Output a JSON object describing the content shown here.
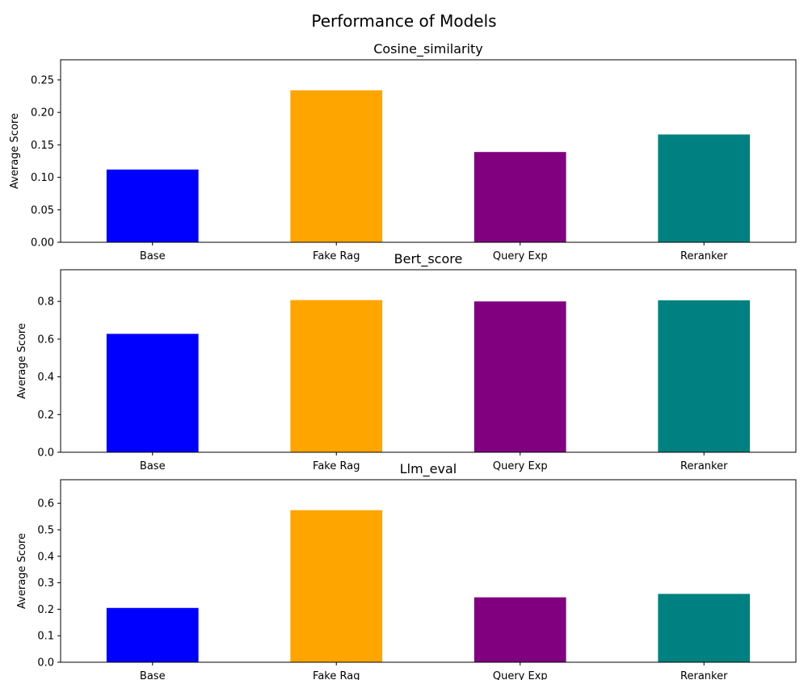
{
  "figure_title": "Performance of Models",
  "chart_data": [
    {
      "type": "bar",
      "title": "Cosine_similarity",
      "categories": [
        "Base",
        "Fake Rag",
        "Query Exp",
        "Reranker"
      ],
      "values": [
        0.112,
        0.234,
        0.139,
        0.166
      ],
      "colors": [
        "#0000ff",
        "#ffa500",
        "#800080",
        "#008080"
      ],
      "ylabel": "Average Score",
      "xlabel": "",
      "ylim": [
        0,
        0.281
      ],
      "yticks": [
        0.0,
        0.05,
        0.1,
        0.15,
        0.2,
        0.25
      ],
      "ytick_labels": [
        "0.00",
        "0.05",
        "0.10",
        "0.15",
        "0.20",
        "0.25"
      ],
      "grid": false
    },
    {
      "type": "bar",
      "title": "Bert_score",
      "categories": [
        "Base",
        "Fake Rag",
        "Query Exp",
        "Reranker"
      ],
      "values": [
        0.628,
        0.807,
        0.8,
        0.806
      ],
      "colors": [
        "#0000ff",
        "#ffa500",
        "#800080",
        "#008080"
      ],
      "ylabel": "Average Score",
      "xlabel": "",
      "ylim": [
        0,
        0.968
      ],
      "yticks": [
        0.0,
        0.2,
        0.4,
        0.6,
        0.8
      ],
      "ytick_labels": [
        "0.0",
        "0.2",
        "0.4",
        "0.6",
        "0.8"
      ],
      "grid": false
    },
    {
      "type": "bar",
      "title": "Llm_eval",
      "categories": [
        "Base",
        "Fake Rag",
        "Query Exp",
        "Reranker"
      ],
      "values": [
        0.205,
        0.574,
        0.245,
        0.258
      ],
      "colors": [
        "#0000ff",
        "#ffa500",
        "#800080",
        "#008080"
      ],
      "ylabel": "Average Score",
      "xlabel": "",
      "ylim": [
        0,
        0.689
      ],
      "yticks": [
        0.0,
        0.1,
        0.2,
        0.3,
        0.4,
        0.5,
        0.6
      ],
      "ytick_labels": [
        "0.0",
        "0.1",
        "0.2",
        "0.3",
        "0.4",
        "0.5",
        "0.6"
      ],
      "grid": false
    }
  ]
}
